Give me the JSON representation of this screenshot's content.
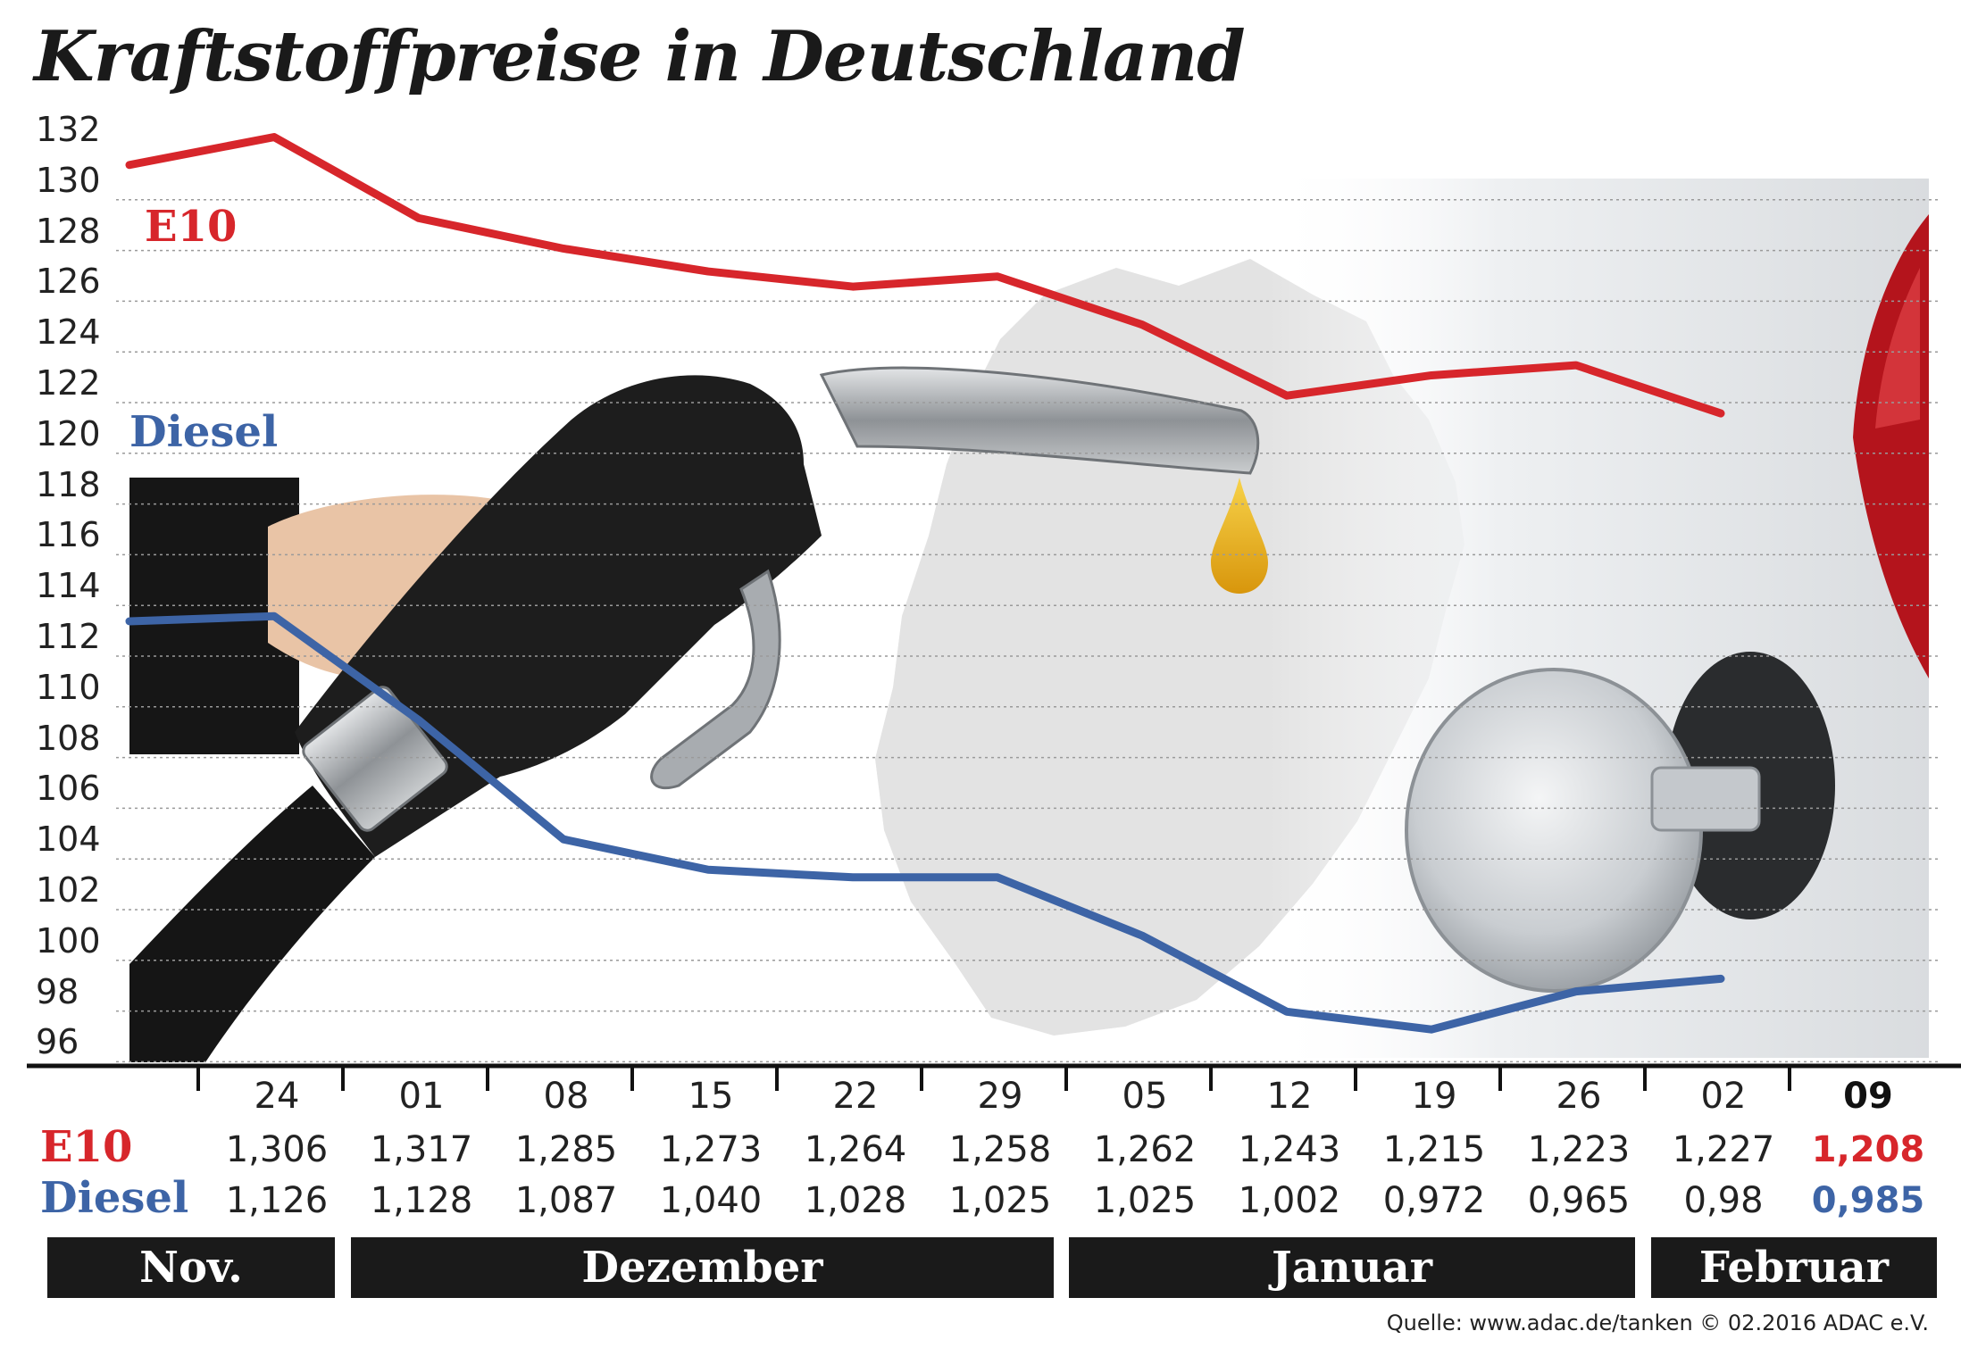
{
  "title": "Kraftstoffpreise in Deutschland",
  "source": "Quelle: www.adac.de/tanken   © 02.2016  ADAC e.V.",
  "colors": {
    "e10": "#d7262b",
    "diesel": "#3d64a6",
    "text": "#1a1a1a",
    "grid": "#9a9a9a",
    "bar": "#1a1a1a"
  },
  "illustration": {
    "hand-icon": "hand holding fuel nozzle",
    "drop-icon": "fuel drop",
    "map-icon": "Germany map silhouette",
    "car-icon": "car with open fuel cap"
  },
  "table": {
    "e10_label": "E10",
    "diesel_label": "Diesel",
    "months": [
      {
        "label": "Nov."
      },
      {
        "label": "Dezember"
      },
      {
        "label": "Januar"
      },
      {
        "label": "Februar"
      }
    ],
    "e10_values": [
      "1,306",
      "1,317",
      "1,285",
      "1,273",
      "1,264",
      "1,258",
      "1,262",
      "1,243",
      "1,215",
      "1,223",
      "1,227",
      "1,208"
    ],
    "diesel_values": [
      "1,126",
      "1,128",
      "1,087",
      "1,040",
      "1,028",
      "1,025",
      "1,025",
      "1,002",
      "0,972",
      "0,965",
      "0,98",
      "0,985"
    ]
  },
  "chart_data": {
    "type": "line",
    "title": "Kraftstoffpreise in Deutschland",
    "x": [
      "24",
      "01",
      "08",
      "15",
      "22",
      "29",
      "05",
      "12",
      "19",
      "26",
      "02",
      "09"
    ],
    "yticks": [
      "132",
      "130",
      "128",
      "126",
      "124",
      "122",
      "120",
      "118",
      "116",
      "114",
      "112",
      "110",
      "108",
      "106",
      "104",
      "102",
      "100",
      "98",
      "96"
    ],
    "ylim": [
      95,
      132
    ],
    "grid": true,
    "series": [
      {
        "name": "E10",
        "values": [
          130.6,
          131.7,
          128.5,
          127.3,
          126.4,
          125.8,
          126.2,
          124.3,
          121.5,
          122.3,
          122.7,
          120.8
        ]
      },
      {
        "name": "Diesel",
        "values": [
          112.6,
          112.8,
          108.7,
          104.0,
          102.8,
          102.5,
          102.5,
          100.2,
          97.2,
          96.5,
          98.0,
          98.5
        ]
      }
    ]
  }
}
